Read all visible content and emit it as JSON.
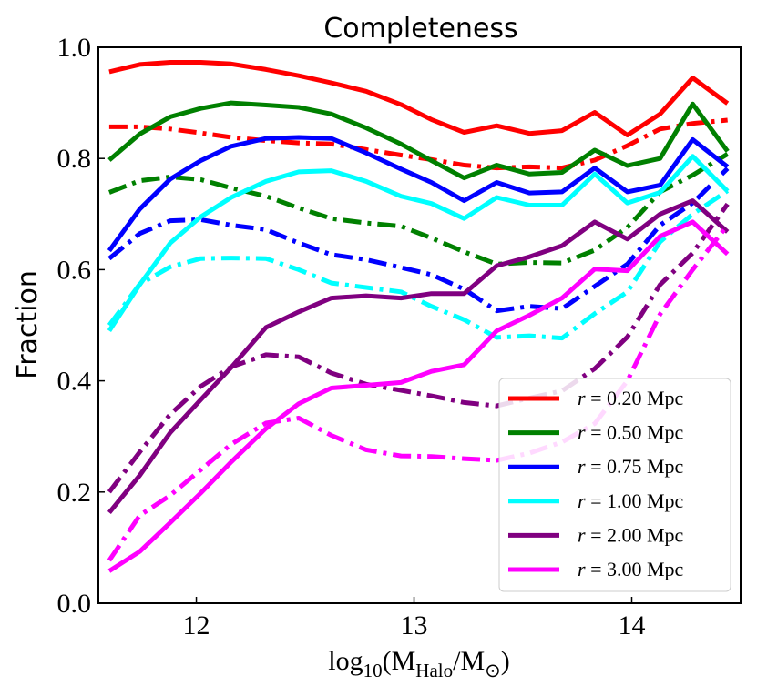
{
  "chart_data": {
    "type": "line",
    "title": "Completeness",
    "ylabel": "Fraction",
    "xlabel": {
      "base": "log",
      "sub1": "10",
      "open": "(M",
      "sub2": "Halo",
      "mid": "/M",
      "sub3": "⊙",
      "close": ")"
    },
    "xlim": [
      11.55,
      14.5
    ],
    "ylim": [
      0.0,
      1.0
    ],
    "xticks": [
      12,
      13,
      14
    ],
    "xtick_labels": [
      "12",
      "13",
      "14"
    ],
    "yticks": [
      0.0,
      0.2,
      0.4,
      0.6,
      0.8,
      1.0
    ],
    "ytick_labels": [
      "0.0",
      "0.2",
      "0.4",
      "0.6",
      "0.8",
      "1.0"
    ],
    "x": [
      11.6,
      11.74,
      11.88,
      12.02,
      12.16,
      12.32,
      12.47,
      12.62,
      12.78,
      12.94,
      13.08,
      13.23,
      13.38,
      13.53,
      13.68,
      13.83,
      13.98,
      14.13,
      14.28,
      14.44
    ],
    "legend_position": "lower-right",
    "series": [
      {
        "name": "r = 0.20 Mpc",
        "r_label": "r",
        "value_label": "= 0.20 Mpc",
        "color": "#ff0000",
        "solid": [
          0.956,
          0.969,
          0.973,
          0.973,
          0.97,
          0.96,
          0.949,
          0.936,
          0.921,
          0.897,
          0.87,
          0.847,
          0.859,
          0.845,
          0.85,
          0.883,
          0.842,
          0.88,
          0.945,
          0.899
        ],
        "dashdot": [
          0.857,
          0.857,
          0.853,
          0.846,
          0.838,
          0.832,
          0.828,
          0.826,
          0.816,
          0.806,
          0.798,
          0.788,
          0.783,
          0.785,
          0.783,
          0.797,
          0.823,
          0.853,
          0.863,
          0.869
        ]
      },
      {
        "name": "r = 0.50 Mpc",
        "r_label": "r",
        "value_label": "= 0.50 Mpc",
        "color": "#008000",
        "solid": [
          0.797,
          0.844,
          0.875,
          0.89,
          0.9,
          0.896,
          0.892,
          0.88,
          0.855,
          0.826,
          0.796,
          0.765,
          0.788,
          0.772,
          0.775,
          0.815,
          0.787,
          0.8,
          0.898,
          0.813
        ],
        "dashdot": [
          0.739,
          0.76,
          0.767,
          0.762,
          0.747,
          0.732,
          0.711,
          0.692,
          0.684,
          0.678,
          0.657,
          0.632,
          0.61,
          0.613,
          0.612,
          0.635,
          0.676,
          0.74,
          0.77,
          0.808
        ]
      },
      {
        "name": "r = 0.75 Mpc",
        "r_label": "r",
        "value_label": "= 0.75 Mpc",
        "color": "#0000ff",
        "solid": [
          0.634,
          0.709,
          0.763,
          0.796,
          0.822,
          0.836,
          0.838,
          0.836,
          0.81,
          0.781,
          0.757,
          0.724,
          0.757,
          0.738,
          0.74,
          0.783,
          0.74,
          0.752,
          0.834,
          0.785
        ],
        "dashdot": [
          0.62,
          0.665,
          0.688,
          0.69,
          0.68,
          0.672,
          0.648,
          0.627,
          0.618,
          0.604,
          0.591,
          0.565,
          0.526,
          0.534,
          0.53,
          0.57,
          0.61,
          0.68,
          0.72,
          0.782
        ]
      },
      {
        "name": "r = 1.00 Mpc",
        "r_label": "r",
        "value_label": "= 1.00 Mpc",
        "color": "#00ffff",
        "solid": [
          0.49,
          0.573,
          0.648,
          0.695,
          0.73,
          0.759,
          0.776,
          0.778,
          0.759,
          0.732,
          0.719,
          0.692,
          0.73,
          0.716,
          0.716,
          0.772,
          0.72,
          0.739,
          0.804,
          0.741
        ],
        "dashdot": [
          0.5,
          0.574,
          0.605,
          0.62,
          0.621,
          0.62,
          0.6,
          0.576,
          0.568,
          0.56,
          0.534,
          0.51,
          0.478,
          0.481,
          0.477,
          0.521,
          0.56,
          0.65,
          0.7,
          0.742
        ]
      },
      {
        "name": "r = 2.00 Mpc",
        "r_label": "r",
        "value_label": "= 2.00 Mpc",
        "color": "#800080",
        "solid": [
          0.163,
          0.23,
          0.307,
          0.366,
          0.424,
          0.496,
          0.524,
          0.549,
          0.553,
          0.549,
          0.557,
          0.557,
          0.607,
          0.623,
          0.643,
          0.686,
          0.655,
          0.7,
          0.724,
          0.668
        ],
        "dashdot": [
          0.2,
          0.272,
          0.34,
          0.39,
          0.425,
          0.447,
          0.443,
          0.414,
          0.394,
          0.383,
          0.373,
          0.361,
          0.355,
          0.369,
          0.382,
          0.422,
          0.479,
          0.573,
          0.63,
          0.718
        ]
      },
      {
        "name": "r = 3.00 Mpc",
        "r_label": "r",
        "value_label": "= 3.00 Mpc",
        "color": "#ff00ff",
        "solid": [
          0.058,
          0.093,
          0.145,
          0.198,
          0.254,
          0.314,
          0.359,
          0.387,
          0.392,
          0.397,
          0.417,
          0.429,
          0.49,
          0.518,
          0.549,
          0.601,
          0.598,
          0.66,
          0.686,
          0.628
        ],
        "dashdot": [
          0.077,
          0.158,
          0.194,
          0.24,
          0.286,
          0.324,
          0.333,
          0.302,
          0.276,
          0.265,
          0.264,
          0.26,
          0.257,
          0.27,
          0.29,
          0.323,
          0.4,
          0.52,
          0.6,
          0.68
        ]
      }
    ]
  }
}
